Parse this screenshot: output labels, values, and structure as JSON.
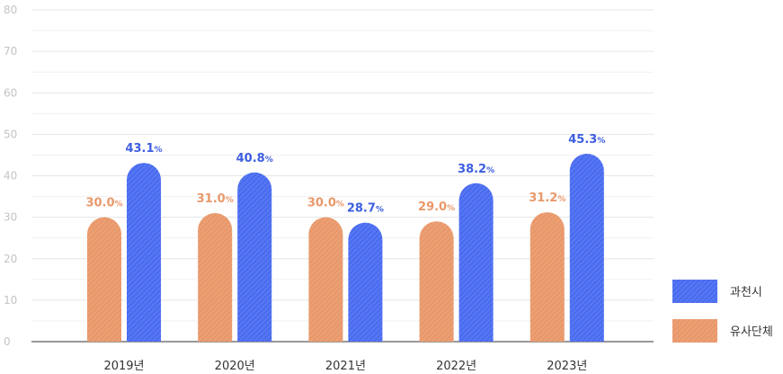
{
  "chart_data": {
    "type": "bar",
    "categories": [
      "2019년",
      "2020년",
      "2021년",
      "2022년",
      "2023년"
    ],
    "series": [
      {
        "name": "유사단체",
        "color": "#e9986a",
        "values": [
          30.0,
          31.0,
          30.0,
          29.0,
          31.2
        ],
        "label_color": "#e9986a"
      },
      {
        "name": "과천시",
        "color": "#4a6cf0",
        "values": [
          43.1,
          40.8,
          28.7,
          38.2,
          45.3
        ],
        "label_color": "#3d5ee0"
      }
    ],
    "value_labels": {
      "orange": [
        "30.0",
        "31.0",
        "30.0",
        "29.0",
        "31.2"
      ],
      "blue": [
        "43.1",
        "40.8",
        "28.7",
        "38.2",
        "45.3"
      ]
    },
    "unit": "%",
    "yticks": [
      "0",
      "10",
      "20",
      "30",
      "40",
      "50",
      "60",
      "70",
      "80"
    ],
    "ylim": [
      0,
      80
    ],
    "grid": true,
    "legend_position": "bottom-right",
    "title": "",
    "xlabel": "",
    "ylabel": ""
  }
}
